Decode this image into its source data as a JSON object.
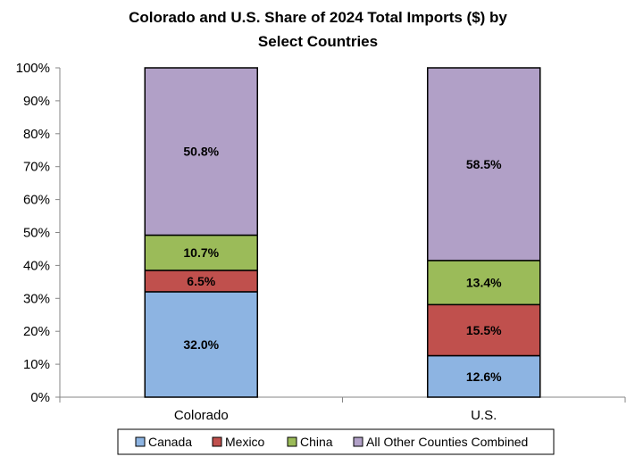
{
  "chart_data": {
    "type": "bar",
    "stacked": true,
    "percent_stacked": true,
    "title": "Colorado and U.S. Share of 2024 Total Imports ($) by Select Countries",
    "title_lines": [
      "Colorado and U.S. Share of 2024 Total Imports ($) by",
      "Select Countries"
    ],
    "categories": [
      "Colorado",
      "U.S."
    ],
    "series": [
      {
        "name": "Canada",
        "values": [
          32.0,
          12.6
        ],
        "labels": [
          "32.0%",
          "12.6%"
        ],
        "color": "#8DB4E2"
      },
      {
        "name": "Mexico",
        "values": [
          6.5,
          15.5
        ],
        "labels": [
          "6.5%",
          "15.5%"
        ],
        "color": "#C0504D"
      },
      {
        "name": "China",
        "values": [
          10.7,
          13.4
        ],
        "labels": [
          "10.7%",
          "13.4%"
        ],
        "color": "#9BBB59"
      },
      {
        "name": "All Other Counties Combined",
        "values": [
          50.8,
          58.5
        ],
        "labels": [
          "50.8%",
          "58.5%"
        ],
        "color": "#B1A0C7"
      }
    ],
    "ylim": [
      0,
      100
    ],
    "yticks": [
      0,
      10,
      20,
      30,
      40,
      50,
      60,
      70,
      80,
      90,
      100
    ],
    "ytick_labels": [
      "0%",
      "10%",
      "20%",
      "30%",
      "40%",
      "50%",
      "60%",
      "70%",
      "80%",
      "90%",
      "100%"
    ],
    "xlabel": "",
    "ylabel": "",
    "grid": false,
    "legend_position": "bottom"
  }
}
